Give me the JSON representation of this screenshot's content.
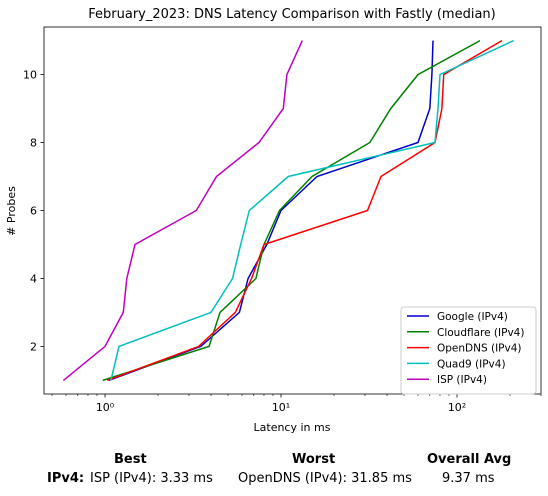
{
  "chart_data": {
    "type": "line",
    "title": "February_2023: DNS Latency Comparison with Fastly (median)",
    "xlabel": "Latency in ms",
    "ylabel": "# Probes",
    "xscale": "log",
    "xlim": [
      0.45,
      300
    ],
    "ylim": [
      0.6,
      11.4
    ],
    "xticks": [
      {
        "value": 1,
        "label": "10⁰"
      },
      {
        "value": 10,
        "label": "10¹"
      },
      {
        "value": 100,
        "label": "10²"
      }
    ],
    "yticks": [
      2,
      4,
      6,
      8,
      10
    ],
    "grid": false,
    "legend_position": "lower right",
    "series": [
      {
        "name": "Google (IPv4)",
        "color": "#0000cc",
        "points": [
          [
            1.05,
            1
          ],
          [
            3.5,
            2
          ],
          [
            5.8,
            3
          ],
          [
            6.5,
            4
          ],
          [
            8.3,
            5
          ],
          [
            10,
            6
          ],
          [
            16,
            7
          ],
          [
            60,
            8
          ],
          [
            70,
            9
          ],
          [
            72,
            10
          ],
          [
            73,
            11
          ]
        ]
      },
      {
        "name": "Cloudflare (IPv4)",
        "color": "#008000",
        "points": [
          [
            0.97,
            1
          ],
          [
            3.9,
            2
          ],
          [
            4.5,
            3
          ],
          [
            7.2,
            4
          ],
          [
            8.0,
            5
          ],
          [
            9.8,
            6
          ],
          [
            15,
            7
          ],
          [
            32,
            8
          ],
          [
            42,
            9
          ],
          [
            60,
            10
          ],
          [
            135,
            11
          ]
        ]
      },
      {
        "name": "OpenDNS (IPv4)",
        "color": "#ff0000",
        "points": [
          [
            1.03,
            1
          ],
          [
            3.4,
            2
          ],
          [
            5.5,
            3
          ],
          [
            6.8,
            4
          ],
          [
            8.0,
            5
          ],
          [
            31,
            6
          ],
          [
            37,
            7
          ],
          [
            75,
            8
          ],
          [
            82,
            9
          ],
          [
            84,
            10
          ],
          [
            180,
            11
          ]
        ]
      },
      {
        "name": "Quad9 (IPv4)",
        "color": "#00bfbf",
        "points": [
          [
            1.08,
            1
          ],
          [
            1.2,
            2
          ],
          [
            4.0,
            3
          ],
          [
            5.3,
            4
          ],
          [
            5.9,
            5
          ],
          [
            6.6,
            6
          ],
          [
            11,
            7
          ],
          [
            75,
            8
          ],
          [
            78,
            9
          ],
          [
            80,
            10
          ],
          [
            210,
            11
          ]
        ]
      },
      {
        "name": "ISP (IPv4)",
        "color": "#bf00bf",
        "points": [
          [
            0.58,
            1
          ],
          [
            1.0,
            2
          ],
          [
            1.27,
            3
          ],
          [
            1.33,
            4
          ],
          [
            1.48,
            5
          ],
          [
            3.3,
            6
          ],
          [
            4.3,
            7
          ],
          [
            7.5,
            8
          ],
          [
            10.3,
            9
          ],
          [
            10.8,
            10
          ],
          [
            13.2,
            11
          ]
        ]
      }
    ]
  },
  "summary": {
    "headers": {
      "best": "Best",
      "worst": "Worst",
      "avg": "Overall Avg"
    },
    "row_label": "IPv4:",
    "best": "ISP (IPv4): 3.33 ms",
    "worst": "OpenDNS (IPv4): 31.85 ms",
    "avg": "9.37 ms"
  }
}
